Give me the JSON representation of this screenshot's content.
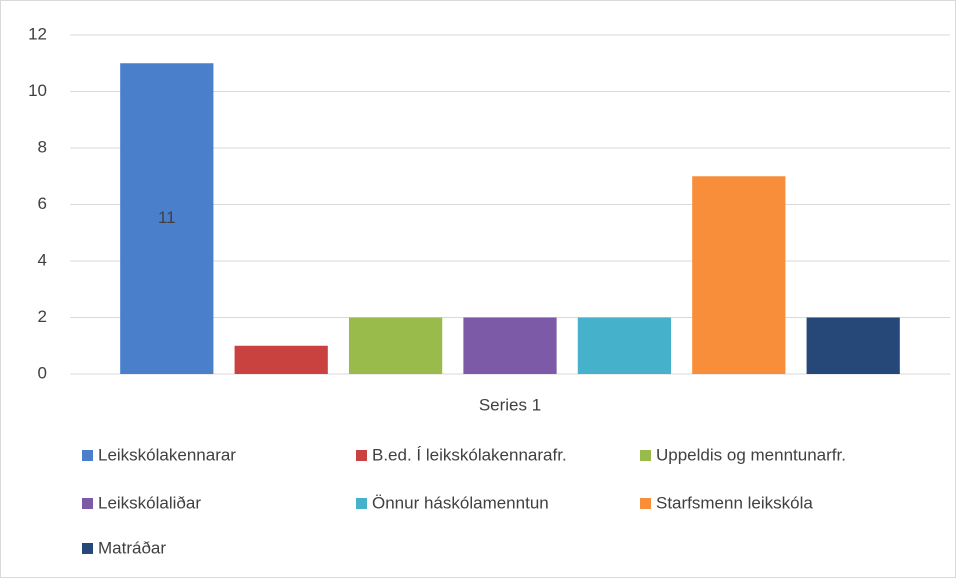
{
  "chart_data": {
    "type": "bar",
    "categories": [
      "Series 1"
    ],
    "series": [
      {
        "name": "Leikskólakennarar",
        "color": "#4a7fcb",
        "values": [
          11
        ],
        "show_labels": true
      },
      {
        "name": "B.ed. Í leikskólakennarafr.",
        "color": "#c9423f",
        "values": [
          1
        ]
      },
      {
        "name": "Uppeldis og menntunarfr.",
        "color": "#98bb4b",
        "values": [
          2
        ]
      },
      {
        "name": "Leikskólaliðar",
        "color": "#7d5aa8",
        "values": [
          2
        ]
      },
      {
        "name": "Önnur háskólamenntun",
        "color": "#45b1cb",
        "values": [
          2
        ]
      },
      {
        "name": "Starfsmenn leikskóla",
        "color": "#f98e3a",
        "values": [
          7
        ]
      },
      {
        "name": "Matráðar",
        "color": "#264878",
        "values": [
          2
        ]
      }
    ],
    "ylim": [
      0,
      12
    ],
    "yticks": [
      0,
      2,
      4,
      6,
      8,
      10,
      12
    ],
    "grid": true,
    "legend": "bottom"
  }
}
